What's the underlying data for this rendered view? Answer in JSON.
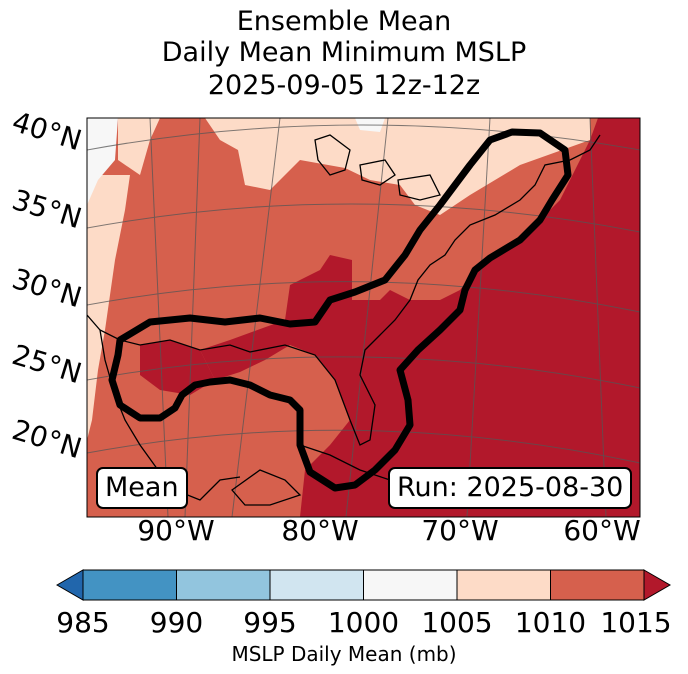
{
  "title": {
    "line1": "Ensemble Mean",
    "line2": "Daily Mean Minimum MSLP",
    "line3": "2025-09-05 12z-12z"
  },
  "map": {
    "lat_labels": [
      "40°N",
      "35°N",
      "30°N",
      "25°N",
      "20°N"
    ],
    "lon_labels": [
      "90°W",
      "80°W",
      "70°W",
      "60°W"
    ],
    "colors": {
      "c985": "#2166ac",
      "c990": "#4393c3",
      "c995": "#92c5de",
      "c1000": "#d1e5f0",
      "c1005": "#f7f7f7",
      "c1010": "#fddbc7",
      "c1015": "#d6604d",
      "cover": "#b2182b"
    }
  },
  "annotations": {
    "mean_label": "Mean",
    "run_label": "Run: 2025-08-30"
  },
  "colorbar": {
    "ticks": [
      "985",
      "990",
      "995",
      "1000",
      "1005",
      "1010",
      "1015"
    ],
    "label": "MSLP Daily Mean (mb)",
    "colors": [
      "#2166ac",
      "#4393c3",
      "#92c5de",
      "#d1e5f0",
      "#f7f7f7",
      "#fddbc7",
      "#d6604d",
      "#b2182b"
    ]
  }
}
